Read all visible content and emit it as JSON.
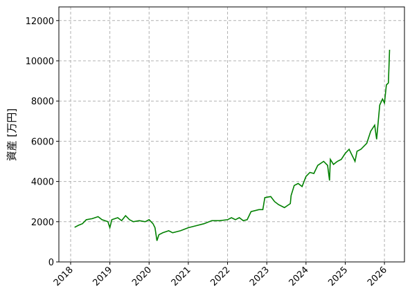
{
  "chart_data": {
    "type": "line",
    "y_label": "資産 [万円]",
    "x": [
      2018.1,
      2018.2,
      2018.3,
      2018.4,
      2018.55,
      2018.7,
      2018.8,
      2018.95,
      2019.0,
      2019.05,
      2019.2,
      2019.3,
      2019.4,
      2019.5,
      2019.6,
      2019.75,
      2019.9,
      2020.0,
      2020.1,
      2020.15,
      2020.2,
      2020.25,
      2020.35,
      2020.5,
      2020.6,
      2020.8,
      2021.0,
      2021.2,
      2021.4,
      2021.6,
      2021.8,
      2022.0,
      2022.1,
      2022.2,
      2022.3,
      2022.4,
      2022.5,
      2022.6,
      2022.8,
      2022.9,
      2022.95,
      2023.1,
      2023.2,
      2023.3,
      2023.45,
      2023.6,
      2023.62,
      2023.7,
      2023.8,
      2023.9,
      2024.0,
      2024.1,
      2024.2,
      2024.3,
      2024.45,
      2024.55,
      2024.6,
      2024.62,
      2024.7,
      2024.8,
      2024.9,
      2025.0,
      2025.1,
      2025.2,
      2025.25,
      2025.3,
      2025.4,
      2025.55,
      2025.65,
      2025.75,
      2025.8,
      2025.88,
      2025.95,
      2026.0,
      2026.05,
      2026.1,
      2026.13
    ],
    "series": [
      {
        "name": "資産",
        "color": "#008000",
        "values": [
          1720,
          1820,
          1900,
          2100,
          2150,
          2250,
          2100,
          2000,
          1700,
          2100,
          2200,
          2050,
          2300,
          2100,
          2000,
          2050,
          2000,
          2100,
          1900,
          1700,
          1050,
          1350,
          1450,
          1550,
          1450,
          1550,
          1700,
          1800,
          1900,
          2050,
          2050,
          2100,
          2200,
          2100,
          2200,
          2050,
          2100,
          2500,
          2600,
          2600,
          3200,
          3250,
          3000,
          2850,
          2700,
          2900,
          3300,
          3800,
          3900,
          3750,
          4250,
          4450,
          4400,
          4800,
          5000,
          4800,
          4050,
          5100,
          4850,
          5000,
          5100,
          5400,
          5600,
          5200,
          5000,
          5500,
          5600,
          5900,
          6500,
          6800,
          6100,
          7800,
          8100,
          7900,
          8800,
          8900,
          10550
        ]
      }
    ],
    "xlim": [
      2017.7,
      2026.51
    ],
    "xticks": [
      2018,
      2019,
      2020,
      2021,
      2022,
      2023,
      2024,
      2025,
      2026
    ],
    "ylim": [
      0,
      12680
    ],
    "yticks": [
      0,
      2000,
      4000,
      6000,
      8000,
      10000,
      12000
    ],
    "grid": true
  }
}
